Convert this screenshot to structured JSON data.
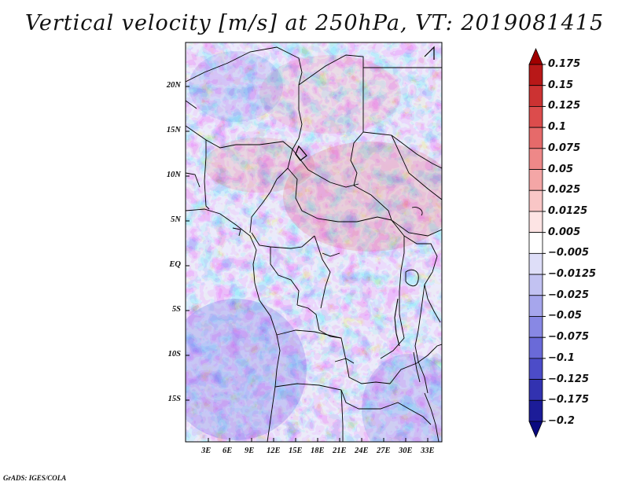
{
  "title": "Vertical velocity [m/s] at 250hPa, VT: 2019081415",
  "credit": "GrADS: IGES/COLA",
  "map": {
    "lat_ticks": [
      "20N",
      "15N",
      "10N",
      "5N",
      "EQ",
      "5S",
      "10S",
      "15S"
    ],
    "lon_ticks": [
      "3E",
      "6E",
      "9E",
      "12E",
      "15E",
      "18E",
      "21E",
      "24E",
      "27E",
      "30E",
      "33E"
    ],
    "field_description_colors": {
      "positive": "#e05050",
      "negative": "#5a5ae6",
      "neutral": "#ffffff"
    }
  },
  "colorbar": {
    "labels": [
      "0.175",
      "0.15",
      "0.125",
      "0.1",
      "0.075",
      "0.05",
      "0.025",
      "0.0125",
      "0.005",
      "−0.005",
      "−0.0125",
      "−0.025",
      "−0.05",
      "−0.075",
      "−0.1",
      "−0.125",
      "−0.175",
      "−0.2"
    ],
    "colors": [
      "#a00000",
      "#b81818",
      "#cc3232",
      "#dc4c4c",
      "#e66a6a",
      "#ee8888",
      "#f4a6a6",
      "#f9c6c6",
      "#fde4e4",
      "#ffffff",
      "#dedef8",
      "#c2c2f2",
      "#a6a6ec",
      "#8888e4",
      "#6a6ad8",
      "#4c4cc8",
      "#3232b0",
      "#1c1c98",
      "#0a0a80"
    ]
  }
}
